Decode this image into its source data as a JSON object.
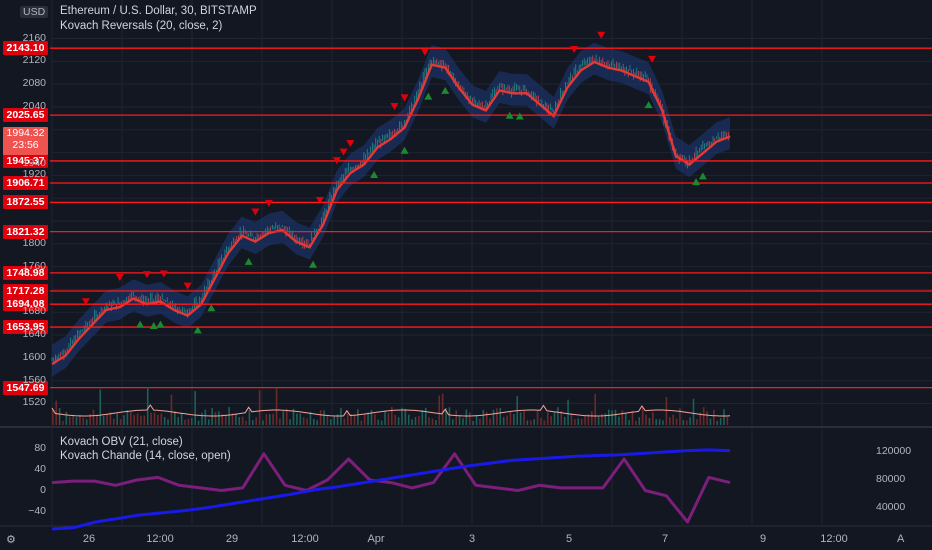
{
  "header": {
    "symbol_title": "Ethereum / U.S. Dollar, 30, BITSTAMP",
    "indicator_title": "Kovach Reversals (20, close, 2)",
    "currency": "USD"
  },
  "lower_pane": {
    "title1": "Kovach OBV (21, close)",
    "title2": "Kovach Chande (14, close, open)",
    "left_ticks": [
      "80",
      "40",
      "0",
      "−40"
    ],
    "right_ticks": [
      "120000",
      "80000",
      "40000"
    ]
  },
  "current_price": {
    "value": "1994.32",
    "countdown": "23:56"
  },
  "level_labels": [
    "2143.10",
    "2025.65",
    "1945.37",
    "1906.71",
    "1872.55",
    "1821.32",
    "1748.98",
    "1717.28",
    "1694.08",
    "1653.95",
    "1547.69"
  ],
  "bottom": {
    "left_button": "⚙",
    "right_button": "A"
  },
  "colors": {
    "background": "#131722",
    "levels": "#ff1a1a",
    "band": "#1e3a78",
    "basis": "#e53935",
    "up": "#089981",
    "down": "#e0000b",
    "obv": "#1a1ae6",
    "chande": "#7b1f7b",
    "volume_ma": "#f4a59d"
  },
  "chart_data": {
    "type": "line",
    "title": "Ethereum / U.S. Dollar, 30, BITSTAMP",
    "y_axis": {
      "ticks": [
        1520,
        1560,
        1600,
        1640,
        1680,
        1760,
        1800,
        1920,
        1940,
        2040,
        2080,
        2120,
        2160
      ],
      "range": [
        1505,
        2175
      ],
      "unit": "USD"
    },
    "x_axis": {
      "ticks": [
        "26",
        "12:00",
        "29",
        "12:00",
        "Apr",
        "3",
        "5",
        "7",
        "9",
        "12:00"
      ]
    },
    "horizontal_levels": [
      2143.1,
      2025.65,
      1945.37,
      1906.71,
      1872.55,
      1821.32,
      1748.98,
      1717.28,
      1694.08,
      1653.95,
      1547.69
    ],
    "price_series": {
      "name": "ETHUSD close",
      "x": [
        0,
        4,
        8,
        12,
        16,
        20,
        24,
        28,
        32,
        36,
        40,
        44,
        48,
        52,
        56,
        60,
        64,
        68,
        72,
        76,
        80,
        84,
        88,
        92,
        96,
        100,
        104,
        108,
        112,
        116,
        120,
        124,
        128,
        132,
        136,
        140,
        144,
        148,
        152,
        156,
        160,
        164,
        168,
        172,
        176,
        180,
        184,
        188,
        192,
        196,
        200
      ],
      "values": [
        1595,
        1610,
        1640,
        1665,
        1690,
        1695,
        1710,
        1700,
        1705,
        1690,
        1680,
        1700,
        1745,
        1790,
        1820,
        1810,
        1825,
        1830,
        1810,
        1800,
        1840,
        1900,
        1930,
        1945,
        1975,
        1990,
        2010,
        2060,
        2120,
        2115,
        2080,
        2050,
        2040,
        2075,
        2070,
        2070,
        2050,
        2030,
        2080,
        2110,
        2125,
        2115,
        2110,
        2100,
        2090,
        2040,
        1960,
        1945,
        1965,
        1985,
        1994.32
      ]
    },
    "reversal_signals": {
      "sell_x": [
        10,
        20,
        28,
        33,
        40,
        60,
        64,
        79,
        84,
        86,
        88,
        101,
        104,
        110,
        154,
        162,
        177
      ],
      "buy_x": [
        26,
        30,
        32,
        43,
        47,
        58,
        77,
        95,
        104,
        111,
        116,
        135,
        138,
        176,
        190,
        192
      ],
      "x_max": 200
    },
    "obv_series": {
      "name": "Kovach OBV",
      "axis": "right",
      "range": [
        20000,
        140000
      ],
      "values": [
        10000,
        12000,
        20000,
        25000,
        30000,
        33000,
        36000,
        40000,
        45000,
        50000,
        55000,
        60000,
        66000,
        70000,
        75000,
        80000,
        85000,
        90000,
        95000,
        100000,
        104000,
        108000,
        110000,
        112000,
        114000,
        115000,
        116000,
        118000,
        120000,
        122000,
        123000,
        122000
      ]
    },
    "chande_series": {
      "name": "Kovach Chande",
      "axis": "left",
      "range": [
        -60,
        100
      ],
      "values": [
        15,
        18,
        18,
        10,
        20,
        25,
        10,
        5,
        0,
        5,
        70,
        10,
        0,
        20,
        60,
        20,
        15,
        5,
        15,
        70,
        10,
        5,
        0,
        10,
        5,
        5,
        5,
        60,
        0,
        -10,
        -60,
        25,
        15
      ]
    }
  }
}
